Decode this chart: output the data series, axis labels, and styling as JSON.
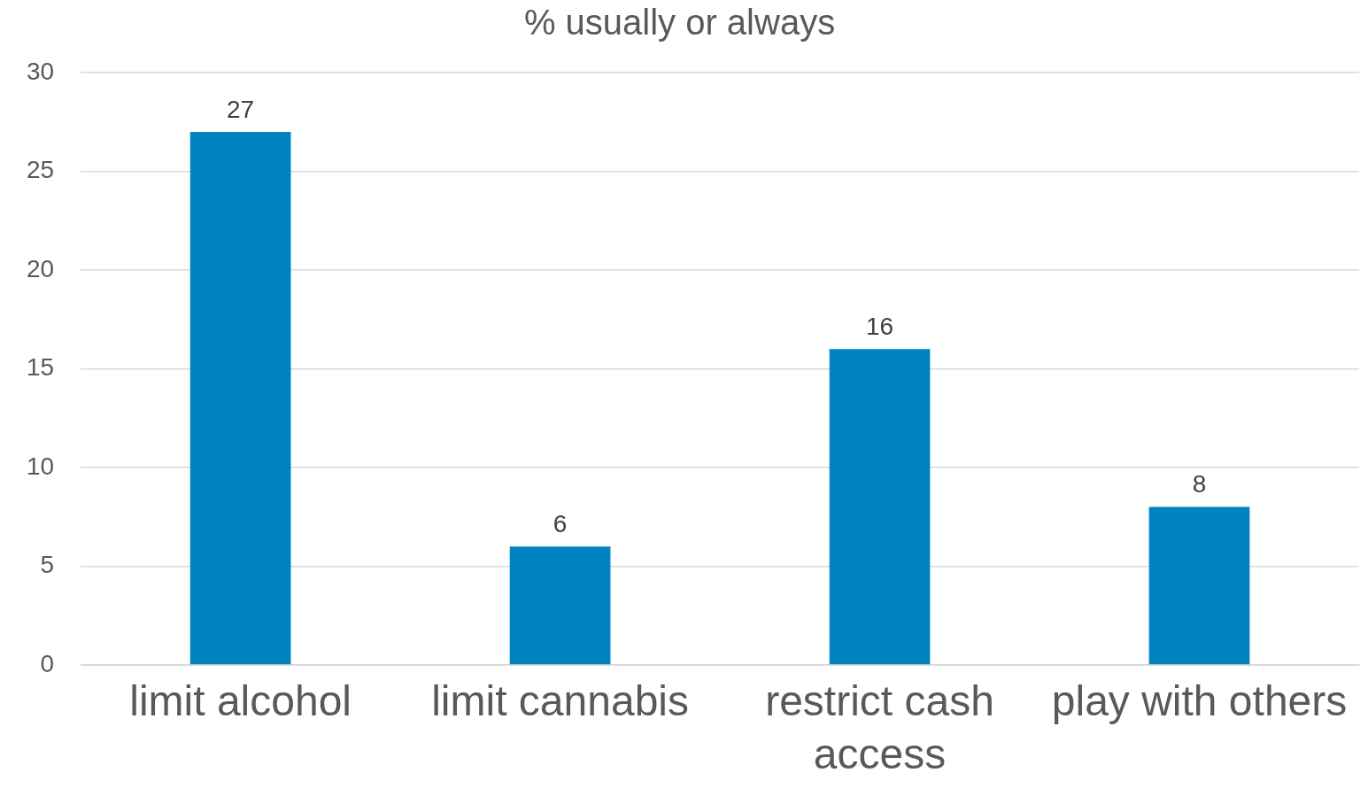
{
  "chart_data": {
    "type": "bar",
    "title": "% usually or always",
    "categories": [
      "limit alcohol",
      "limit cannabis",
      "restrict cash access",
      "play with others"
    ],
    "values": [
      27,
      6,
      16,
      8
    ],
    "color": "#0083c1",
    "ylim": [
      0,
      30
    ],
    "yticks": [
      0,
      5,
      10,
      15,
      20,
      25,
      30
    ],
    "grid": "y",
    "data_labels": true,
    "legend": false
  }
}
